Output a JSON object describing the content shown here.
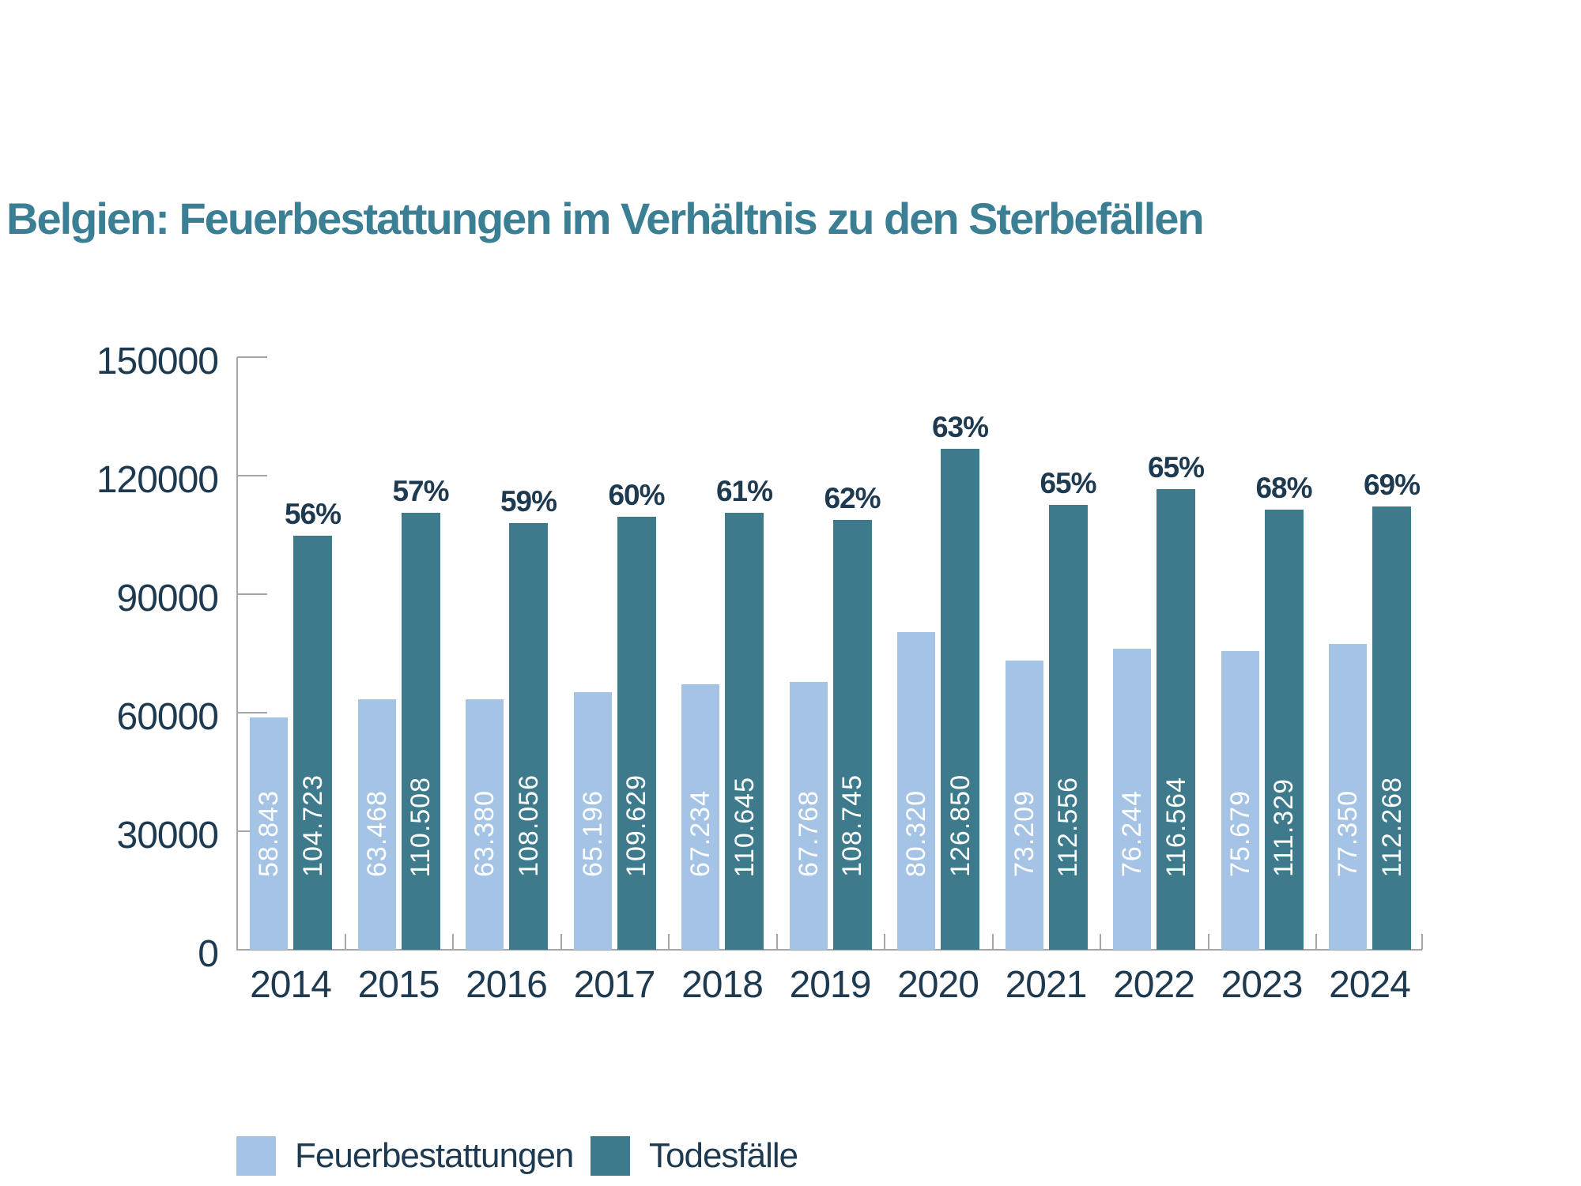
{
  "title": "Belgien: Feuerbestattungen im Verhältnis zu den Sterbefällen",
  "colors": {
    "title_text": "#3b7f95",
    "dark_text": "#1e3a51",
    "axis_gray": "#a6a6a6",
    "cremations_bar": "#a5c4e5",
    "deaths_bar": "#3d7a8b",
    "bar_value_text": "#ffffff"
  },
  "legend": {
    "items": [
      {
        "label": "Feuerbestattungen",
        "series": "cremations"
      },
      {
        "label": "Todesfälle",
        "series": "deaths"
      }
    ]
  },
  "chart_data": {
    "type": "bar",
    "title": "Belgien: Feuerbestattungen im Verhältnis zu den Sterbefällen",
    "categories": [
      "2014",
      "2015",
      "2016",
      "2017",
      "2018",
      "2019",
      "2020",
      "2021",
      "2022",
      "2023",
      "2024"
    ],
    "series": [
      {
        "name": "Feuerbestattungen",
        "values": [
          58843,
          63468,
          63380,
          65196,
          67234,
          67768,
          80320,
          73209,
          76244,
          75679,
          77350
        ],
        "labels": [
          "58.843",
          "63.468",
          "63.380",
          "65.196",
          "67.234",
          "67.768",
          "80.320",
          "73.209",
          "76.244",
          "75.679",
          "77.350"
        ]
      },
      {
        "name": "Todesfälle",
        "values": [
          104723,
          110508,
          108056,
          109629,
          110645,
          108745,
          126850,
          112556,
          116564,
          111329,
          112268
        ],
        "labels": [
          "104.723",
          "110.508",
          "108.056",
          "109.629",
          "110.645",
          "108.745",
          "126.850",
          "112.556",
          "116.564",
          "111.329",
          "112.268"
        ]
      }
    ],
    "percent_labels": [
      "56%",
      "57%",
      "59%",
      "60%",
      "61%",
      "62%",
      "63%",
      "65%",
      "65%",
      "68%",
      "69%"
    ],
    "ylim": [
      0,
      150000
    ],
    "yticks": [
      0,
      30000,
      60000,
      90000,
      120000,
      150000
    ],
    "ytick_labels": [
      "0",
      "30000",
      "60000",
      "90000",
      "120000",
      "150000"
    ],
    "xlabel": "",
    "ylabel": "",
    "grid": false,
    "legend_position": "bottom"
  }
}
